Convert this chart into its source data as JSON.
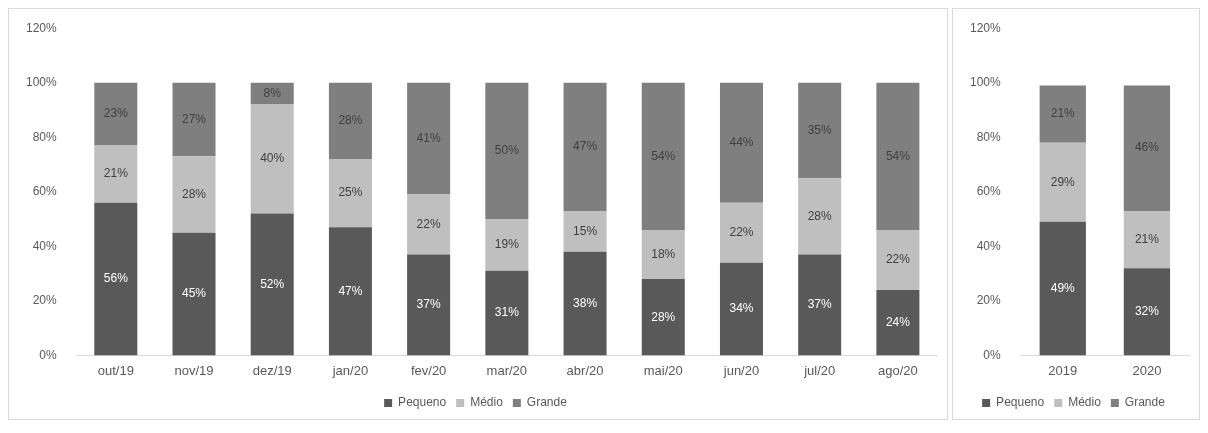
{
  "chart_data": [
    {
      "type": "bar",
      "stacked": true,
      "categories": [
        "out/19",
        "nov/19",
        "dez/19",
        "jan/20",
        "fev/20",
        "mar/20",
        "abr/20",
        "mai/20",
        "jun/20",
        "jul/20",
        "ago/20"
      ],
      "series": [
        {
          "name": "Pequeno",
          "color": "#595959",
          "values": [
            56,
            45,
            52,
            47,
            37,
            31,
            38,
            28,
            34,
            37,
            24
          ],
          "value_labels": [
            "56%",
            "45%",
            "52%",
            "47%",
            "37%",
            "31%",
            "38%",
            "28%",
            "34%",
            "37%",
            "24%"
          ]
        },
        {
          "name": "Médio",
          "color": "#bfbfbf",
          "values": [
            21,
            28,
            40,
            25,
            22,
            19,
            15,
            18,
            22,
            28,
            22
          ],
          "value_labels": [
            "21%",
            "28%",
            "40%",
            "25%",
            "22%",
            "19%",
            "15%",
            "18%",
            "22%",
            "28%",
            "22%"
          ]
        },
        {
          "name": "Grande",
          "color": "#7f7f7f",
          "values": [
            23,
            27,
            8,
            28,
            41,
            50,
            47,
            54,
            44,
            35,
            54
          ],
          "value_labels": [
            "23%",
            "27%",
            "8%",
            "28%",
            "41%",
            "50%",
            "47%",
            "54%",
            "44%",
            "35%",
            "54%"
          ]
        }
      ],
      "ylim": [
        0,
        120
      ],
      "yticks": [
        {
          "value": 0,
          "label": "0%"
        },
        {
          "value": 20,
          "label": "20%"
        },
        {
          "value": 40,
          "label": "40%"
        },
        {
          "value": 60,
          "label": "60%"
        },
        {
          "value": 80,
          "label": "80%"
        },
        {
          "value": 100,
          "label": "100%"
        },
        {
          "value": 120,
          "label": "120%"
        }
      ],
      "grid": false,
      "legend": "bottom"
    },
    {
      "type": "bar",
      "stacked": true,
      "categories": [
        "2019",
        "2020"
      ],
      "series": [
        {
          "name": "Pequeno",
          "color": "#595959",
          "values": [
            49,
            32
          ],
          "value_labels": [
            "49%",
            "32%"
          ]
        },
        {
          "name": "Médio",
          "color": "#bfbfbf",
          "values": [
            29,
            21
          ],
          "value_labels": [
            "29%",
            "21%"
          ]
        },
        {
          "name": "Grande",
          "color": "#7f7f7f",
          "values": [
            21,
            46
          ],
          "value_labels": [
            "21%",
            "46%"
          ]
        }
      ],
      "ylim": [
        0,
        120
      ],
      "yticks": [
        {
          "value": 0,
          "label": "0%"
        },
        {
          "value": 20,
          "label": "20%"
        },
        {
          "value": 40,
          "label": "40%"
        },
        {
          "value": 60,
          "label": "60%"
        },
        {
          "value": 80,
          "label": "80%"
        },
        {
          "value": 100,
          "label": "100%"
        },
        {
          "value": 120,
          "label": "120%"
        }
      ],
      "grid": false,
      "legend": "bottom"
    }
  ]
}
